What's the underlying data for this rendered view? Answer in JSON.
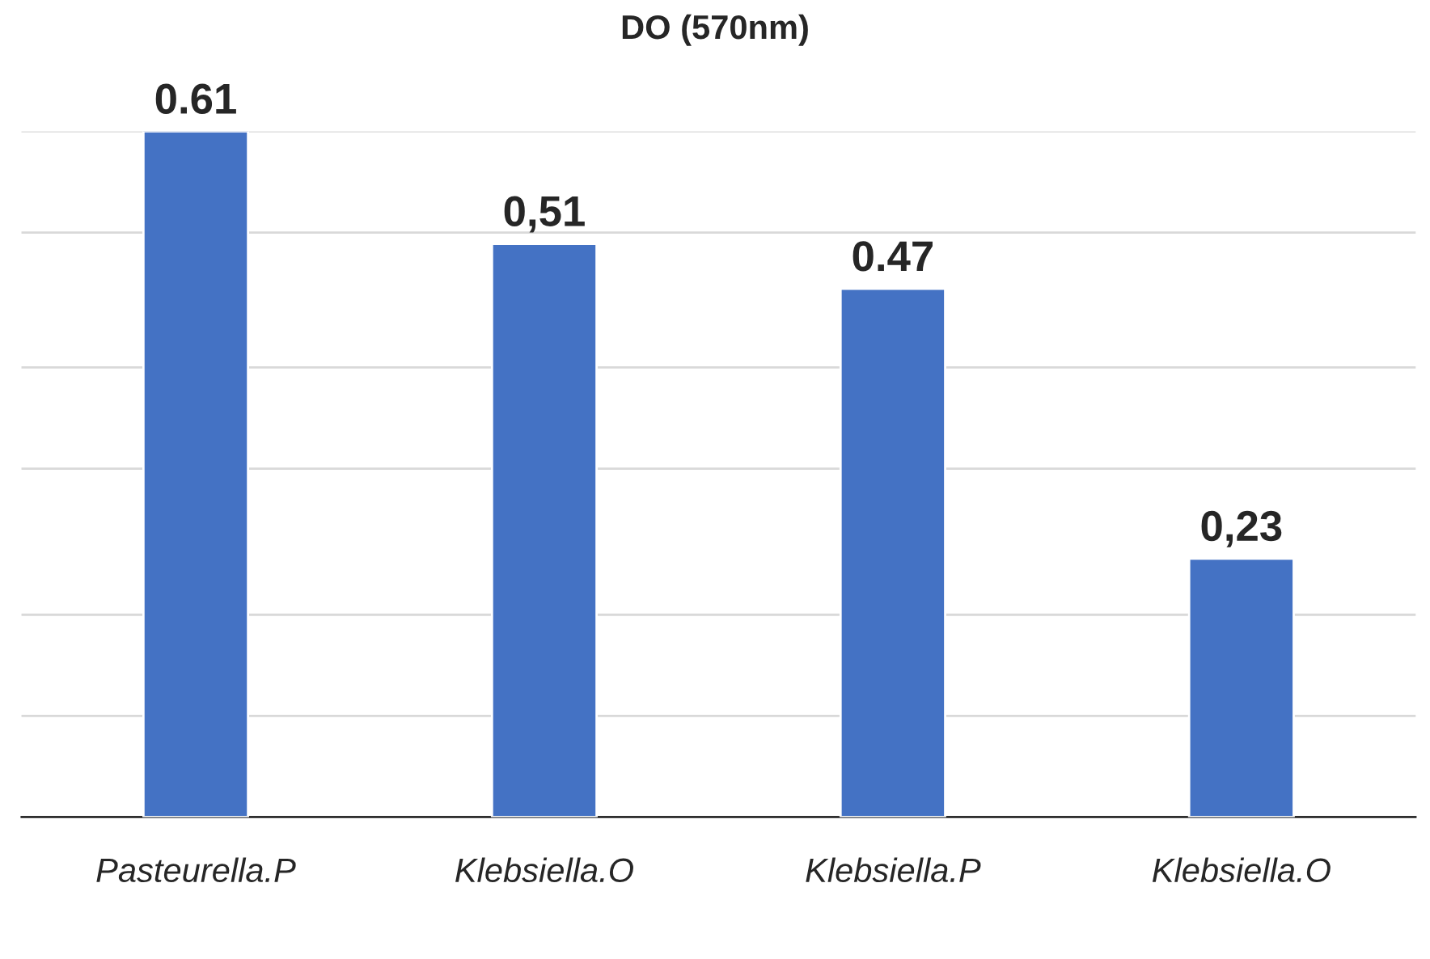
{
  "chart_data": {
    "type": "bar",
    "title": "DO (570nm)",
    "categories": [
      "Pasteurella.P",
      "Klebsiella.O",
      "Klebsiella.P",
      "Klebsiella.O"
    ],
    "values": [
      0.61,
      0.51,
      0.47,
      0.23
    ],
    "value_labels": [
      "0.61",
      "0,51",
      "0.47",
      "0,23"
    ],
    "color": "#4472c4",
    "ylim": [
      0,
      0.61
    ],
    "yticks": [
      {
        "value": 0.09,
        "label": null
      },
      {
        "value": 0.18,
        "label": null
      },
      {
        "value": 0.31,
        "label": null
      },
      {
        "value": 0.4,
        "label": null
      },
      {
        "value": 0.52,
        "label": null
      },
      {
        "value": 0.61,
        "label": null
      }
    ],
    "grid": "y",
    "tick_labels": "x"
  }
}
